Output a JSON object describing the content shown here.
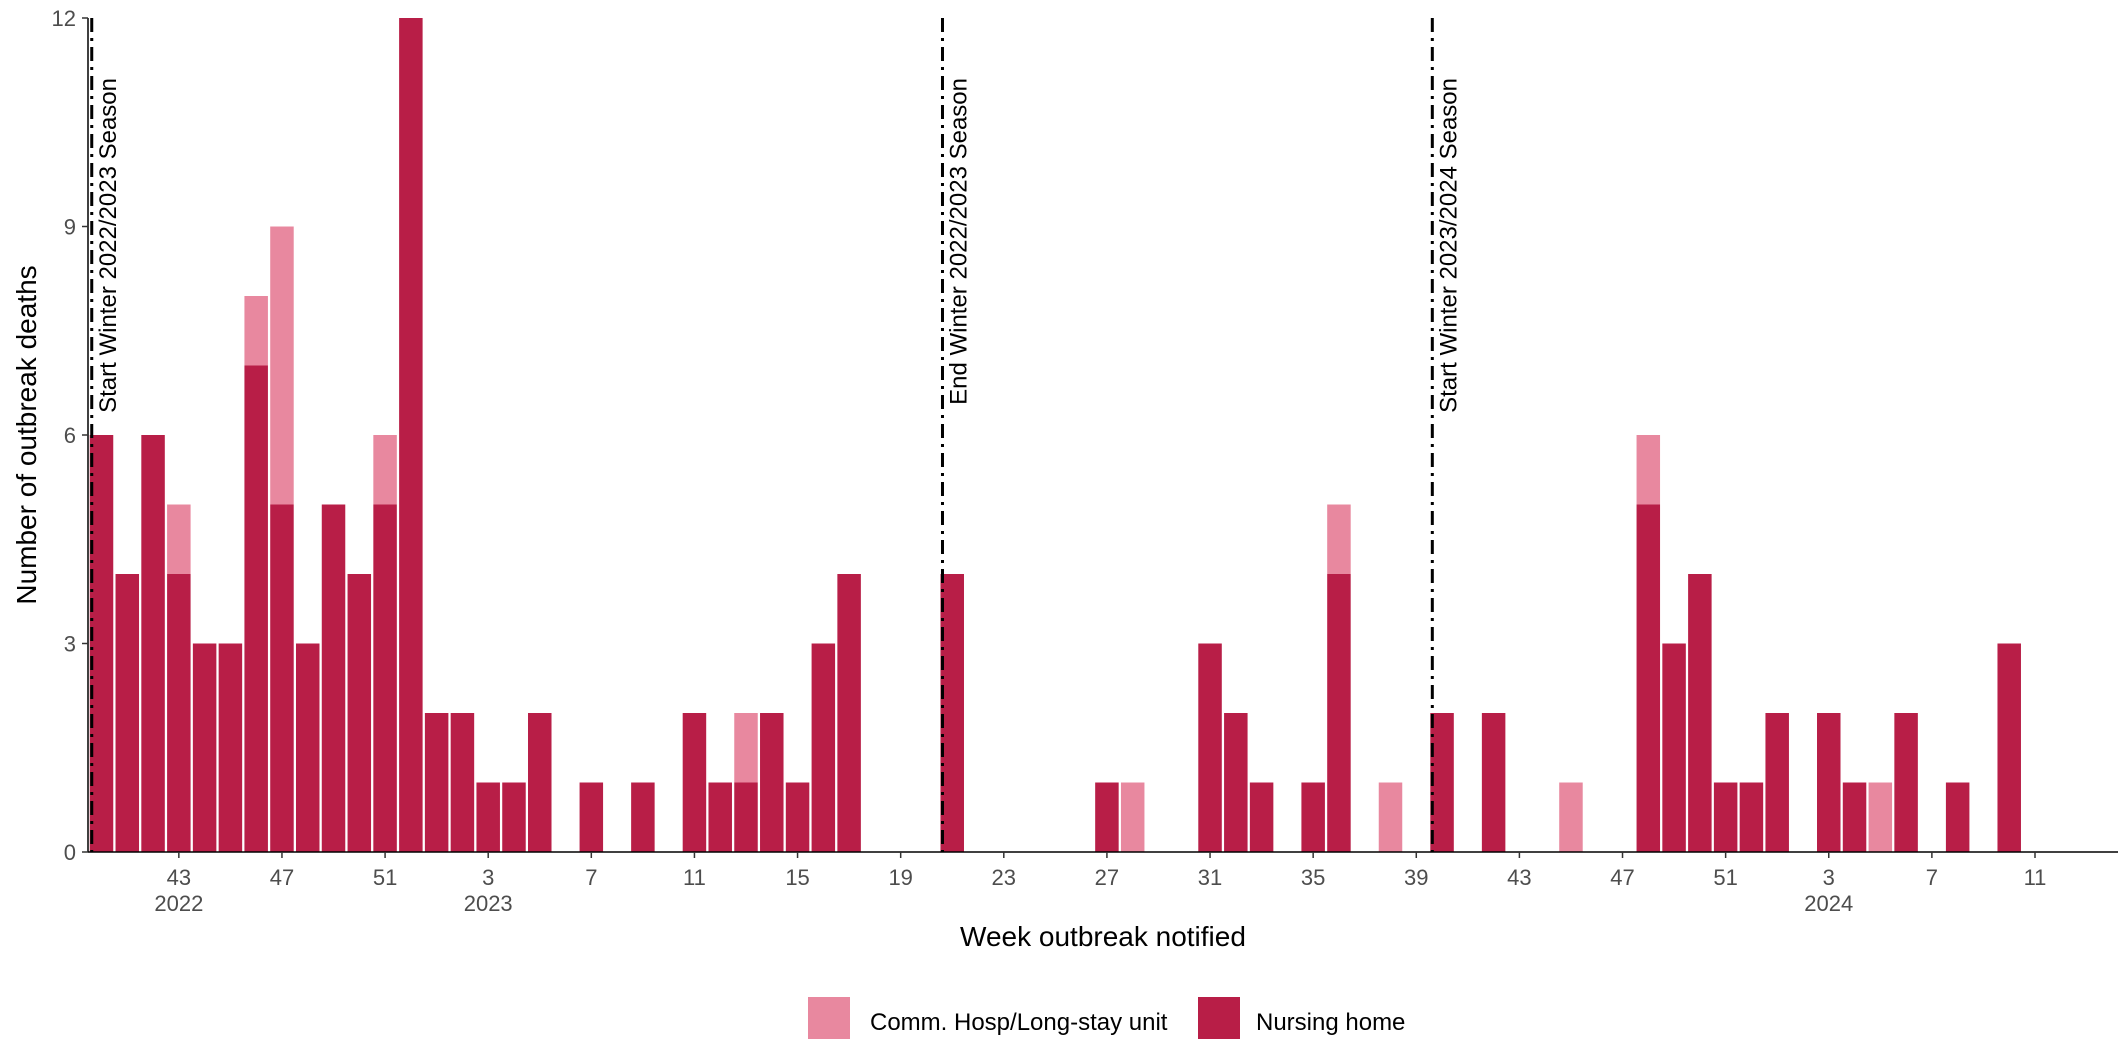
{
  "chart_data": {
    "type": "bar",
    "stacked": true,
    "xlabel": "Week outbreak notified",
    "ylabel": "Number of outbreak deaths",
    "ylim": [
      0,
      12
    ],
    "y_ticks": [
      "0",
      "3",
      "6",
      "9",
      "12"
    ],
    "grid": false,
    "legend_position": "bottom",
    "colors": {
      "comm_hosp": "#E8889F",
      "nursing_home": "#B81E47"
    },
    "x_ticks": [
      {
        "label": "43",
        "year": "2022",
        "index": 3
      },
      {
        "label": "47",
        "year": "",
        "index": 7
      },
      {
        "label": "51",
        "year": "",
        "index": 11
      },
      {
        "label": "3",
        "year": "2023",
        "index": 15
      },
      {
        "label": "7",
        "year": "",
        "index": 19
      },
      {
        "label": "11",
        "year": "",
        "index": 23
      },
      {
        "label": "15",
        "year": "",
        "index": 27
      },
      {
        "label": "19",
        "year": "",
        "index": 31
      },
      {
        "label": "23",
        "year": "",
        "index": 35
      },
      {
        "label": "27",
        "year": "",
        "index": 39
      },
      {
        "label": "31",
        "year": "",
        "index": 43
      },
      {
        "label": "35",
        "year": "",
        "index": 47
      },
      {
        "label": "39",
        "year": "",
        "index": 51
      },
      {
        "label": "43",
        "year": "",
        "index": 55
      },
      {
        "label": "47",
        "year": "",
        "index": 59
      },
      {
        "label": "51",
        "year": "",
        "index": 63
      },
      {
        "label": "3",
        "year": "2024",
        "index": 67
      },
      {
        "label": "7",
        "year": "",
        "index": 71
      },
      {
        "label": "11",
        "year": "",
        "index": 75
      }
    ],
    "weeks": [
      "2022-40",
      "2022-41",
      "2022-42",
      "2022-43",
      "2022-44",
      "2022-45",
      "2022-46",
      "2022-47",
      "2022-48",
      "2022-49",
      "2022-50",
      "2022-51",
      "2022-52",
      "2023-01",
      "2023-02",
      "2023-03",
      "2023-04",
      "2023-05",
      "2023-06",
      "2023-07",
      "2023-08",
      "2023-09",
      "2023-10",
      "2023-11",
      "2023-12",
      "2023-13",
      "2023-14",
      "2023-15",
      "2023-16",
      "2023-17",
      "2023-18",
      "2023-19",
      "2023-20",
      "2023-21",
      "2023-22",
      "2023-23",
      "2023-24",
      "2023-25",
      "2023-26",
      "2023-27",
      "2023-28",
      "2023-29",
      "2023-30",
      "2023-31",
      "2023-32",
      "2023-33",
      "2023-34",
      "2023-35",
      "2023-36",
      "2023-37",
      "2023-38",
      "2023-39",
      "2023-40",
      "2023-41",
      "2023-42",
      "2023-43",
      "2023-44",
      "2023-45",
      "2023-46",
      "2023-47",
      "2023-48",
      "2023-49",
      "2023-50",
      "2023-51",
      "2023-52",
      "2024-01",
      "2024-02",
      "2024-03",
      "2024-04",
      "2024-05",
      "2024-06",
      "2024-07",
      "2024-08",
      "2024-09",
      "2024-10",
      "2024-11"
    ],
    "series": [
      {
        "name": "Nursing home",
        "values": [
          6,
          4,
          6,
          4,
          3,
          3,
          7,
          5,
          3,
          5,
          4,
          5,
          12,
          2,
          2,
          1,
          1,
          2,
          0,
          1,
          0,
          1,
          0,
          2,
          1,
          1,
          2,
          1,
          3,
          4,
          0,
          0,
          0,
          4,
          0,
          0,
          0,
          0,
          0,
          1,
          0,
          0,
          0,
          3,
          2,
          1,
          0,
          1,
          4,
          0,
          0,
          0,
          2,
          0,
          2,
          0,
          0,
          0,
          0,
          0,
          5,
          3,
          4,
          1,
          1,
          2,
          0,
          2,
          1,
          0,
          2,
          0,
          1,
          0,
          3,
          0
        ]
      },
      {
        "name": "Comm. Hosp/Long-stay unit",
        "values": [
          0,
          0,
          0,
          1,
          0,
          0,
          1,
          4,
          0,
          0,
          0,
          1,
          0,
          0,
          0,
          0,
          0,
          0,
          0,
          0,
          0,
          0,
          0,
          0,
          0,
          1,
          0,
          0,
          0,
          0,
          0,
          0,
          0,
          0,
          0,
          0,
          0,
          0,
          0,
          0,
          1,
          0,
          0,
          0,
          0,
          0,
          0,
          0,
          1,
          0,
          1,
          0,
          0,
          0,
          0,
          0,
          0,
          1,
          0,
          0,
          1,
          0,
          0,
          0,
          0,
          0,
          0,
          0,
          0,
          1,
          0,
          0,
          0,
          0,
          0,
          0
        ]
      }
    ],
    "annotations": [
      {
        "text": "Start Winter 2022/2023 Season",
        "position": 0
      },
      {
        "text": "End Winter 2022/2023 Season",
        "position": 33
      },
      {
        "text": "Start Winter 2023/2024 Season",
        "position": 52
      }
    ]
  }
}
